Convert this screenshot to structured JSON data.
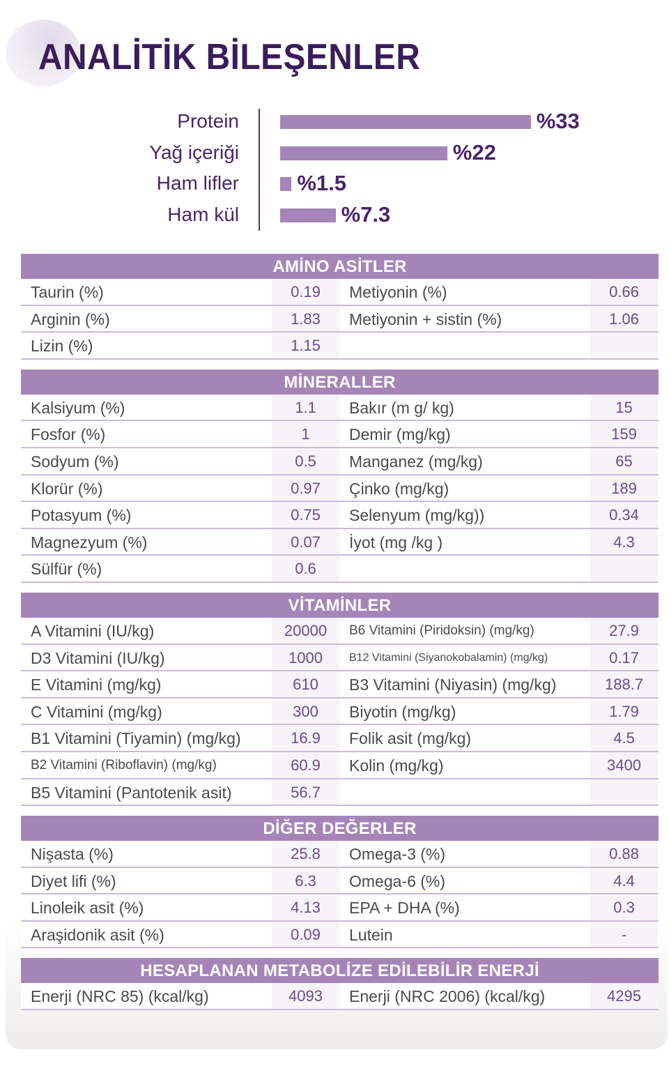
{
  "title": "ANALİTİK BİLEŞENLER",
  "colors": {
    "accent": "#a585b8",
    "title": "#3a1d5a",
    "value_text": "#6b4a8c"
  },
  "chart_data": {
    "type": "bar",
    "orientation": "horizontal",
    "categories": [
      "Protein",
      "Yağ içeriği",
      "Ham lifler",
      "Ham kül"
    ],
    "values": [
      33,
      22,
      1.5,
      7.3
    ],
    "value_labels": [
      "%33",
      "%22",
      "%1.5",
      "%7.3"
    ],
    "title": "",
    "xlabel": "",
    "ylabel": ""
  },
  "sections": [
    {
      "title": "AMİNO ASİTLER",
      "rows": [
        [
          {
            "l": "Taurin (%)",
            "v": "0.19"
          },
          {
            "l": "Metiyonin (%)",
            "v": "0.66"
          }
        ],
        [
          {
            "l": "Arginin (%)",
            "v": "1.83"
          },
          {
            "l": "Metiyonin + sistin (%)",
            "v": "1.06"
          }
        ],
        [
          {
            "l": "Lizin (%)",
            "v": "1.15"
          },
          {
            "l": "",
            "v": ""
          }
        ]
      ]
    },
    {
      "title": "MİNERALLER",
      "rows": [
        [
          {
            "l": "Kalsiyum (%)",
            "v": "1.1"
          },
          {
            "l": "Bakır (m g/ kg)",
            "v": "15"
          }
        ],
        [
          {
            "l": "Fosfor (%)",
            "v": "1"
          },
          {
            "l": "Demir (mg/kg)",
            "v": "159"
          }
        ],
        [
          {
            "l": "Sodyum (%)",
            "v": "0.5"
          },
          {
            "l": "Manganez (mg/kg)",
            "v": "65"
          }
        ],
        [
          {
            "l": "Klorür (%)",
            "v": "0.97"
          },
          {
            "l": "Çinko (mg/kg)",
            "v": "189"
          }
        ],
        [
          {
            "l": "Potasyum (%)",
            "v": "0.75"
          },
          {
            "l": "Selenyum (mg/kg))",
            "v": "0.34"
          }
        ],
        [
          {
            "l": "Magnezyum (%)",
            "v": "0.07"
          },
          {
            "l": "İyot (mg /kg )",
            "v": "4.3"
          }
        ],
        [
          {
            "l": "Sülfür (%)",
            "v": "0.6"
          },
          {
            "l": "",
            "v": ""
          }
        ]
      ]
    },
    {
      "title": "VİTAMİNLER",
      "rows": [
        [
          {
            "l": "A Vitamini (IU/kg)",
            "v": "20000"
          },
          {
            "l": "B6 Vitamini (Piridoksin) (mg/kg)",
            "v": "27.9",
            "s": "small"
          }
        ],
        [
          {
            "l": "D3 Vitamini (IU/kg)",
            "v": "1000"
          },
          {
            "l": "B12 Vitamini (Siyanokobalamin) (mg/kg)",
            "v": "0.17",
            "s": "xsmall"
          }
        ],
        [
          {
            "l": "E Vitamini (mg/kg)",
            "v": "610"
          },
          {
            "l": "B3 Vitamini (Niyasin) (mg/kg)",
            "v": "188.7"
          }
        ],
        [
          {
            "l": "C Vitamini (mg/kg)",
            "v": "300"
          },
          {
            "l": "Biyotin (mg/kg)",
            "v": "1.79"
          }
        ],
        [
          {
            "l": "B1 Vitamini (Tiyamin) (mg/kg)",
            "v": "16.9"
          },
          {
            "l": "Folik asit (mg/kg)",
            "v": "4.5"
          }
        ],
        [
          {
            "l": "B2 Vitamini (Riboflavin) (mg/kg)",
            "v": "60.9",
            "s": "small"
          },
          {
            "l": "Kolin (mg/kg)",
            "v": "3400"
          }
        ],
        [
          {
            "l": "B5 Vitamini (Pantotenik asit)",
            "v": "56.7"
          },
          {
            "l": "",
            "v": ""
          }
        ]
      ]
    },
    {
      "title": "DİĞER DEĞERLER",
      "rows": [
        [
          {
            "l": "Nişasta (%)",
            "v": "25.8"
          },
          {
            "l": "Omega-3 (%)",
            "v": "0.88"
          }
        ],
        [
          {
            "l": "Diyet lifi (%)",
            "v": "6.3"
          },
          {
            "l": "Omega-6 (%)",
            "v": "4.4"
          }
        ],
        [
          {
            "l": "Linoleik asit (%)",
            "v": "4.13"
          },
          {
            "l": "EPA + DHA (%)",
            "v": "0.3"
          }
        ],
        [
          {
            "l": "Araşidonik asit (%)",
            "v": "0.09"
          },
          {
            "l": "Lutein",
            "v": "-"
          }
        ]
      ]
    },
    {
      "title": "HESAPLANAN METABOLİZE EDİLEBİLİR ENERJİ",
      "rows": [
        [
          {
            "l": "Enerji (NRC 85) (kcal/kg)",
            "v": "4093"
          },
          {
            "l": "Enerji (NRC 2006) (kcal/kg)",
            "v": "4295"
          }
        ]
      ]
    }
  ]
}
